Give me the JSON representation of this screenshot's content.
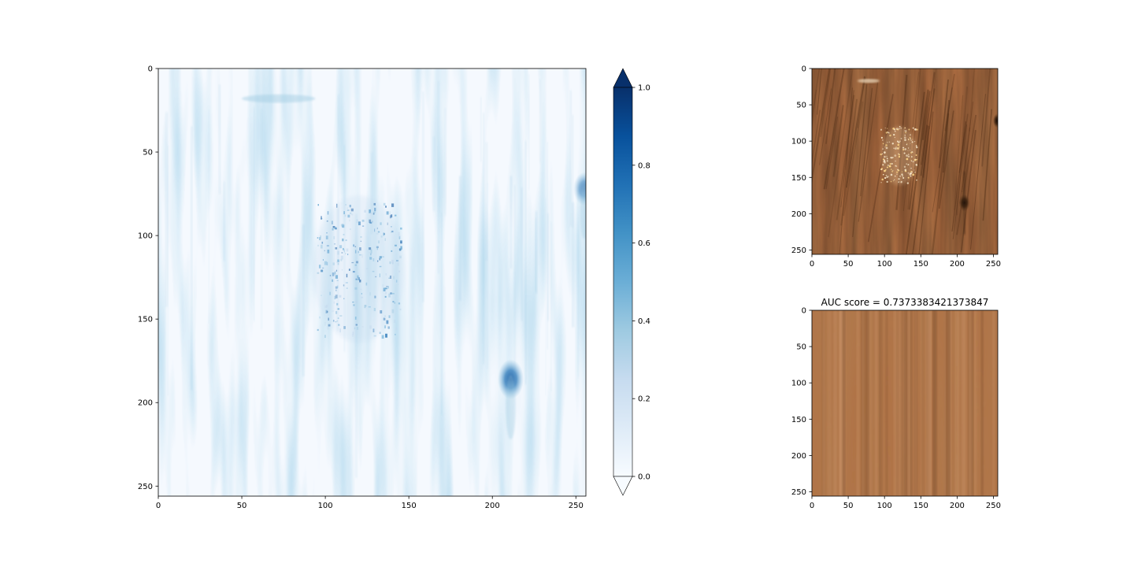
{
  "chart_data": [
    {
      "type": "heatmap",
      "name": "anomaly-map",
      "title": "",
      "xlabel": "",
      "ylabel": "",
      "xlim": [
        0,
        256
      ],
      "ylim": [
        256,
        0
      ],
      "x_ticks": [
        "0",
        "50",
        "100",
        "150",
        "200",
        "250"
      ],
      "y_ticks": [
        "0",
        "50",
        "100",
        "150",
        "200",
        "250"
      ],
      "colormap": "Blues",
      "colorbar": {
        "range": [
          0.0,
          1.0
        ],
        "ticks": [
          "0.0",
          "0.2",
          "0.4",
          "0.6",
          "0.8",
          "1.0"
        ],
        "extend": "both"
      },
      "features": [
        {
          "kind": "scatter-cluster",
          "center": [
            120,
            120
          ],
          "spread": [
            25,
            40
          ],
          "intensity": 0.7
        },
        {
          "kind": "blob",
          "center": [
            211,
            186
          ],
          "radius": 6,
          "intensity": 0.85
        },
        {
          "kind": "edge-blob",
          "center": [
            255,
            72
          ],
          "radius": 5,
          "intensity": 0.6
        },
        {
          "kind": "faint-streak",
          "center": [
            72,
            18
          ],
          "intensity": 0.25
        }
      ]
    },
    {
      "type": "image",
      "name": "test-image",
      "title": "",
      "xlim": [
        0,
        256
      ],
      "ylim": [
        256,
        0
      ],
      "x_ticks": [
        "0",
        "50",
        "100",
        "150",
        "200",
        "250"
      ],
      "y_ticks": [
        "0",
        "50",
        "100",
        "150",
        "200",
        "250"
      ],
      "texture": "wood",
      "base_color": "#a8683e",
      "features": [
        {
          "kind": "light-speckle",
          "center": [
            120,
            120
          ],
          "spread": [
            25,
            40
          ]
        },
        {
          "kind": "dark-knot",
          "center": [
            210,
            185
          ]
        },
        {
          "kind": "edge-knot",
          "center": [
            256,
            72
          ]
        },
        {
          "kind": "light-streak",
          "center": [
            78,
            17
          ]
        }
      ]
    },
    {
      "type": "image",
      "name": "reconstruction",
      "title": "AUC score = 0.7373383421373847",
      "xlim": [
        0,
        256
      ],
      "ylim": [
        256,
        0
      ],
      "x_ticks": [
        "0",
        "50",
        "100",
        "150",
        "200",
        "250"
      ],
      "y_ticks": [
        "0",
        "50",
        "100",
        "150",
        "200",
        "250"
      ],
      "texture": "wood-blurred",
      "base_color": "#b07448"
    }
  ]
}
